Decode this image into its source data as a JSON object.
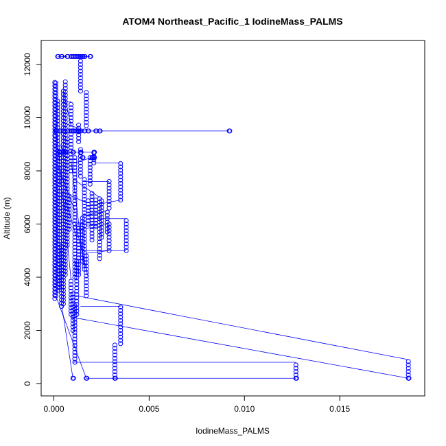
{
  "chart_data": {
    "type": "scatter",
    "title": "ATOM4 Northeast_Pacific_1 IodineMass_PALMS",
    "xlabel": "IodineMass_PALMS",
    "ylabel": "Altitude (m)",
    "xlim": [
      0,
      0.0187
    ],
    "ylim": [
      0,
      12300
    ],
    "x_ticks": [
      0.0,
      0.005,
      0.01,
      0.015
    ],
    "x_tick_labels": [
      "0.000",
      "0.005",
      "0.010",
      "0.015"
    ],
    "y_ticks": [
      0,
      2000,
      4000,
      6000,
      8000,
      10000,
      12000
    ],
    "y_tick_labels": [
      "0",
      "2000",
      "4000",
      "6000",
      "8000",
      "10000",
      "12000"
    ],
    "grid": false,
    "legend": "none",
    "color": "#0000ff",
    "columns": [
      {
        "x": 5e-05,
        "y": [
          3200,
          11400
        ]
      },
      {
        "x": 0.0001,
        "y": [
          3300,
          11300
        ]
      },
      {
        "x": 0.0002,
        "y": [
          3500,
          10700
        ]
      },
      {
        "x": 0.0003,
        "y": [
          3600,
          8800
        ]
      },
      {
        "x": 0.0004,
        "y": [
          2900,
          5200
        ]
      },
      {
        "x": 0.0005,
        "y": [
          3000,
          11000
        ]
      },
      {
        "x": 0.0006,
        "y": [
          4100,
          11400
        ]
      },
      {
        "x": 0.0007,
        "y": [
          5200,
          9200
        ]
      },
      {
        "x": 0.0008,
        "y": [
          5800,
          7100
        ]
      },
      {
        "x": 0.0009,
        "y": [
          2600,
          3900
        ]
      },
      {
        "x": 0.0009,
        "y": [
          8000,
          10600
        ]
      },
      {
        "x": 0.001,
        "y": [
          2000,
          3400
        ]
      },
      {
        "x": 0.0011,
        "y": [
          800,
          3000
        ]
      },
      {
        "x": 0.0011,
        "y": [
          4000,
          8500
        ]
      },
      {
        "x": 0.0012,
        "y": [
          2600,
          4600
        ]
      },
      {
        "x": 0.0013,
        "y": [
          4100,
          6000
        ]
      },
      {
        "x": 0.0013,
        "y": [
          9100,
          9800
        ]
      },
      {
        "x": 0.0014,
        "y": [
          7800,
          8800
        ]
      },
      {
        "x": 0.0014,
        "y": [
          11000,
          12200
        ]
      },
      {
        "x": 0.0015,
        "y": [
          4600,
          6300
        ]
      },
      {
        "x": 0.0016,
        "y": [
          4300,
          7700
        ]
      },
      {
        "x": 0.0017,
        "y": [
          3300,
          4800
        ]
      },
      {
        "x": 0.0017,
        "y": [
          9700,
          11000
        ]
      },
      {
        "x": 0.0018,
        "y": [
          6000,
          6900
        ]
      },
      {
        "x": 0.0019,
        "y": [
          7500,
          8500
        ]
      },
      {
        "x": 0.002,
        "y": [
          5400,
          7200
        ]
      },
      {
        "x": 0.0021,
        "y": [
          8300,
          8700
        ]
      },
      {
        "x": 0.0022,
        "y": [
          5900,
          6900
        ]
      },
      {
        "x": 0.0024,
        "y": [
          4700,
          7000
        ]
      },
      {
        "x": 0.0025,
        "y": [
          5500,
          6900
        ]
      },
      {
        "x": 0.0028,
        "y": [
          5700,
          6500
        ]
      },
      {
        "x": 0.0029,
        "y": [
          5000,
          6000
        ]
      },
      {
        "x": 0.0029,
        "y": [
          6600,
          7600
        ]
      },
      {
        "x": 0.0032,
        "y": [
          200,
          1500
        ]
      },
      {
        "x": 0.0035,
        "y": [
          1500,
          2900
        ]
      },
      {
        "x": 0.0035,
        "y": [
          6900,
          8300
        ]
      },
      {
        "x": 0.0038,
        "y": [
          5000,
          6200
        ]
      },
      {
        "x": 0.0127,
        "y": [
          200,
          800
        ]
      },
      {
        "x": 0.0186,
        "y": [
          200,
          900
        ]
      }
    ],
    "clusters": [
      {
        "x": [
          0.0002,
          0.0004,
          0.0007,
          0.0009,
          0.001,
          0.0011,
          0.0012,
          0.0013,
          0.0014,
          0.0015,
          0.0016,
          0.0019
        ],
        "y": 12300
      },
      {
        "x": [
          0.0001,
          0.0003,
          0.0005,
          0.0007,
          0.0009,
          0.001,
          0.0011,
          0.0012,
          0.0013,
          0.0014,
          0.0016,
          0.0018,
          0.0022,
          0.0024,
          0.0092
        ],
        "y": 9500
      },
      {
        "x": [
          0.0003,
          0.0004,
          0.0005,
          0.0006,
          0.001,
          0.0014,
          0.0021
        ],
        "y": 8700
      },
      {
        "x": [
          0.0015,
          0.002,
          0.0021
        ],
        "y": 8500
      },
      {
        "x": [
          0.001,
          0.0017,
          0.0032,
          0.0127,
          0.0186
        ],
        "y": 200
      }
    ],
    "lines": [
      [
        [
          0.0001,
          9500
        ],
        [
          0.0092,
          9500
        ]
      ],
      [
        [
          0.0012,
          3300
        ],
        [
          0.0186,
          900
        ]
      ],
      [
        [
          0.0009,
          2500
        ],
        [
          0.0186,
          200
        ]
      ],
      [
        [
          0.001,
          800
        ],
        [
          0.0127,
          800
        ]
      ],
      [
        [
          0.0017,
          200
        ],
        [
          0.0127,
          200
        ]
      ],
      [
        [
          0.0014,
          2900
        ],
        [
          0.0035,
          2900
        ]
      ],
      [
        [
          0.0021,
          8300
        ],
        [
          0.0035,
          8300
        ]
      ],
      [
        [
          0.0018,
          6200
        ],
        [
          0.0038,
          6200
        ]
      ],
      [
        [
          0.0015,
          5000
        ],
        [
          0.0038,
          5000
        ]
      ],
      [
        [
          0.0016,
          7600
        ],
        [
          0.0029,
          7600
        ]
      ],
      [
        [
          0.002,
          6700
        ],
        [
          0.0035,
          6900
        ]
      ],
      [
        [
          0.0017,
          4900
        ],
        [
          0.0029,
          5000
        ]
      ],
      [
        [
          0.0005,
          10600
        ],
        [
          0.0009,
          10600
        ]
      ],
      [
        [
          0.0004,
          8700
        ],
        [
          0.0021,
          8700
        ]
      ],
      [
        [
          0.0011,
          8300
        ],
        [
          0.002,
          8500
        ]
      ],
      [
        [
          0.0008,
          7100
        ],
        [
          0.0017,
          6800
        ]
      ],
      [
        [
          0.0005,
          9800
        ],
        [
          0.0013,
          9600
        ]
      ],
      [
        [
          0.0012,
          6000
        ],
        [
          0.0029,
          6000
        ]
      ],
      [
        [
          0.0011,
          5800
        ],
        [
          0.0025,
          5900
        ]
      ],
      [
        [
          0.0015,
          6300
        ],
        [
          0.0028,
          6500
        ]
      ],
      [
        [
          0.001,
          7700
        ],
        [
          0.0024,
          7000
        ]
      ],
      [
        [
          0.0002,
          8200
        ],
        [
          0.0011,
          6500
        ]
      ],
      [
        [
          0.0003,
          7800
        ],
        [
          0.0006,
          6400
        ]
      ],
      [
        [
          0.0001,
          3300
        ],
        [
          0.0017,
          200
        ]
      ],
      [
        [
          0.0004,
          3000
        ],
        [
          0.001,
          200
        ]
      ],
      [
        [
          0.0009,
          8400
        ],
        [
          0.0016,
          4300
        ]
      ],
      [
        [
          0.0011,
          6100
        ],
        [
          0.0018,
          4000
        ]
      ],
      [
        [
          0.0007,
          5400
        ],
        [
          0.0009,
          3900
        ]
      ],
      [
        [
          0.0006,
          6900
        ],
        [
          0.0012,
          5500
        ]
      ],
      [
        [
          0.0005,
          11000
        ],
        [
          0.0009,
          9700
        ]
      ],
      [
        [
          0.0001,
          9700
        ],
        [
          0.0004,
          7600
        ]
      ],
      [
        [
          0.0013,
          12300
        ],
        [
          0.0019,
          12300
        ]
      ],
      [
        [
          0.0002,
          12300
        ],
        [
          0.0007,
          12300
        ]
      ],
      [
        [
          0.0003,
          9000
        ],
        [
          0.0006,
          8700
        ]
      ],
      [
        [
          0.0011,
          4600
        ],
        [
          0.0013,
          4200
        ]
      ]
    ]
  }
}
